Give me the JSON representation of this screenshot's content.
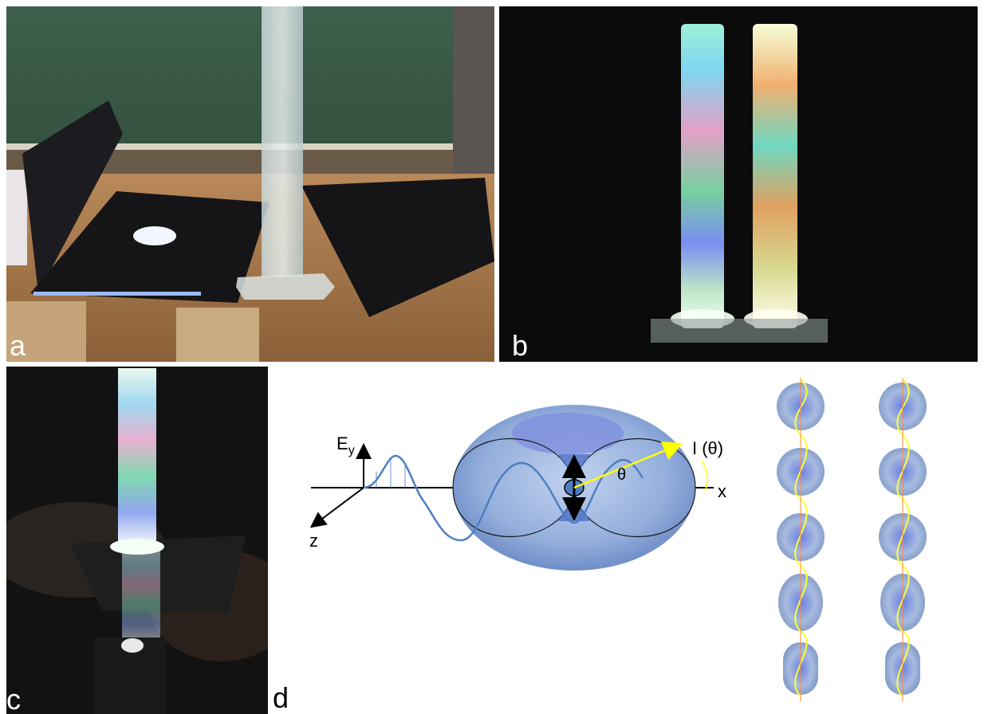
{
  "panels": {
    "a": {
      "label": "a"
    },
    "b": {
      "label": "b"
    },
    "c": {
      "label": "c"
    },
    "d": {
      "label": "d"
    }
  },
  "diagram": {
    "axis_y_label": "E",
    "axis_y_subscript": "y",
    "axis_x_label": "x",
    "axis_z_label": "z",
    "intensity_label": "I (θ)",
    "angle_label": "θ"
  },
  "colors": {
    "background": "#ffffff",
    "chalkboard": "#3a5a48",
    "table_wood": "#a07444",
    "dark_room": "#0b0b0b",
    "torus_fill": "#8aa7d6",
    "wave_stroke": "#4f7fc0",
    "arrow_yellow": "#ffff00"
  }
}
